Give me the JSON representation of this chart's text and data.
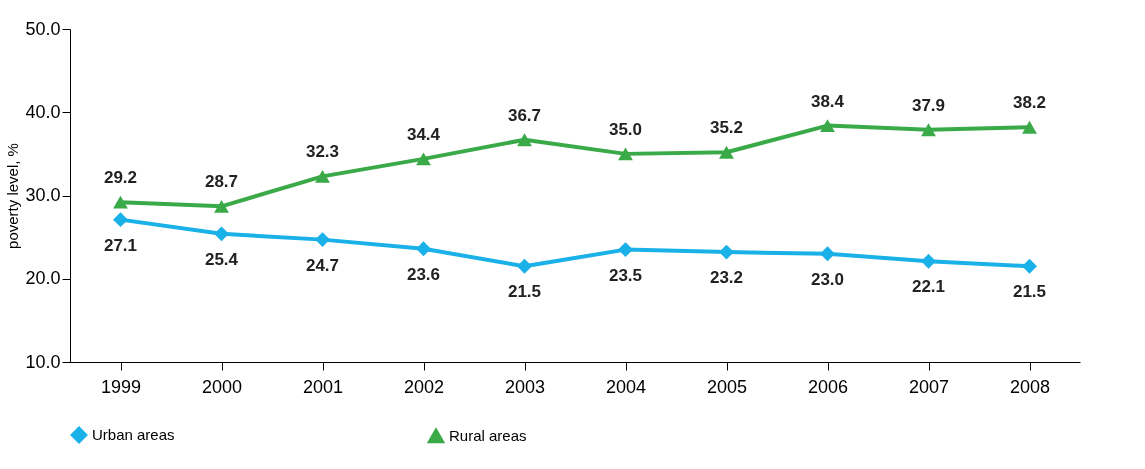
{
  "chart_data": {
    "type": "line",
    "ylabel": "poverty level, %",
    "categories": [
      "1999",
      "2000",
      "2001",
      "2002",
      "2003",
      "2004",
      "2005",
      "2006",
      "2007",
      "2008"
    ],
    "series": [
      {
        "name": "Urban areas",
        "color": "#1ab0e8",
        "marker": "diamond",
        "values": [
          27.1,
          25.4,
          24.7,
          23.6,
          21.5,
          23.5,
          23.2,
          23.0,
          22.1,
          21.5
        ],
        "value_labels": [
          "27.1",
          "25.4",
          "24.7",
          "23.6",
          "21.5",
          "23.5",
          "23.2",
          "23.0",
          "22.1",
          "21.5"
        ]
      },
      {
        "name": "Rural areas",
        "color": "#3aaa48",
        "marker": "triangle",
        "values": [
          29.2,
          28.7,
          32.3,
          34.4,
          36.7,
          35.0,
          35.2,
          38.4,
          37.9,
          38.2
        ],
        "value_labels": [
          "29.2",
          "28.7",
          "32.3",
          "34.4",
          "36.7",
          "35.0",
          "35.2",
          "38.4",
          "37.9",
          "38.2"
        ]
      }
    ],
    "ylim": [
      10,
      50
    ],
    "yticks": [
      {
        "value": 10,
        "label": "10.0"
      },
      {
        "value": 20,
        "label": "20.0"
      },
      {
        "value": 30,
        "label": "30.0"
      },
      {
        "value": 40,
        "label": "40.0"
      },
      {
        "value": 50,
        "label": "50.0"
      }
    ],
    "grid": false,
    "legend": "bottom",
    "line_style": "solid"
  }
}
